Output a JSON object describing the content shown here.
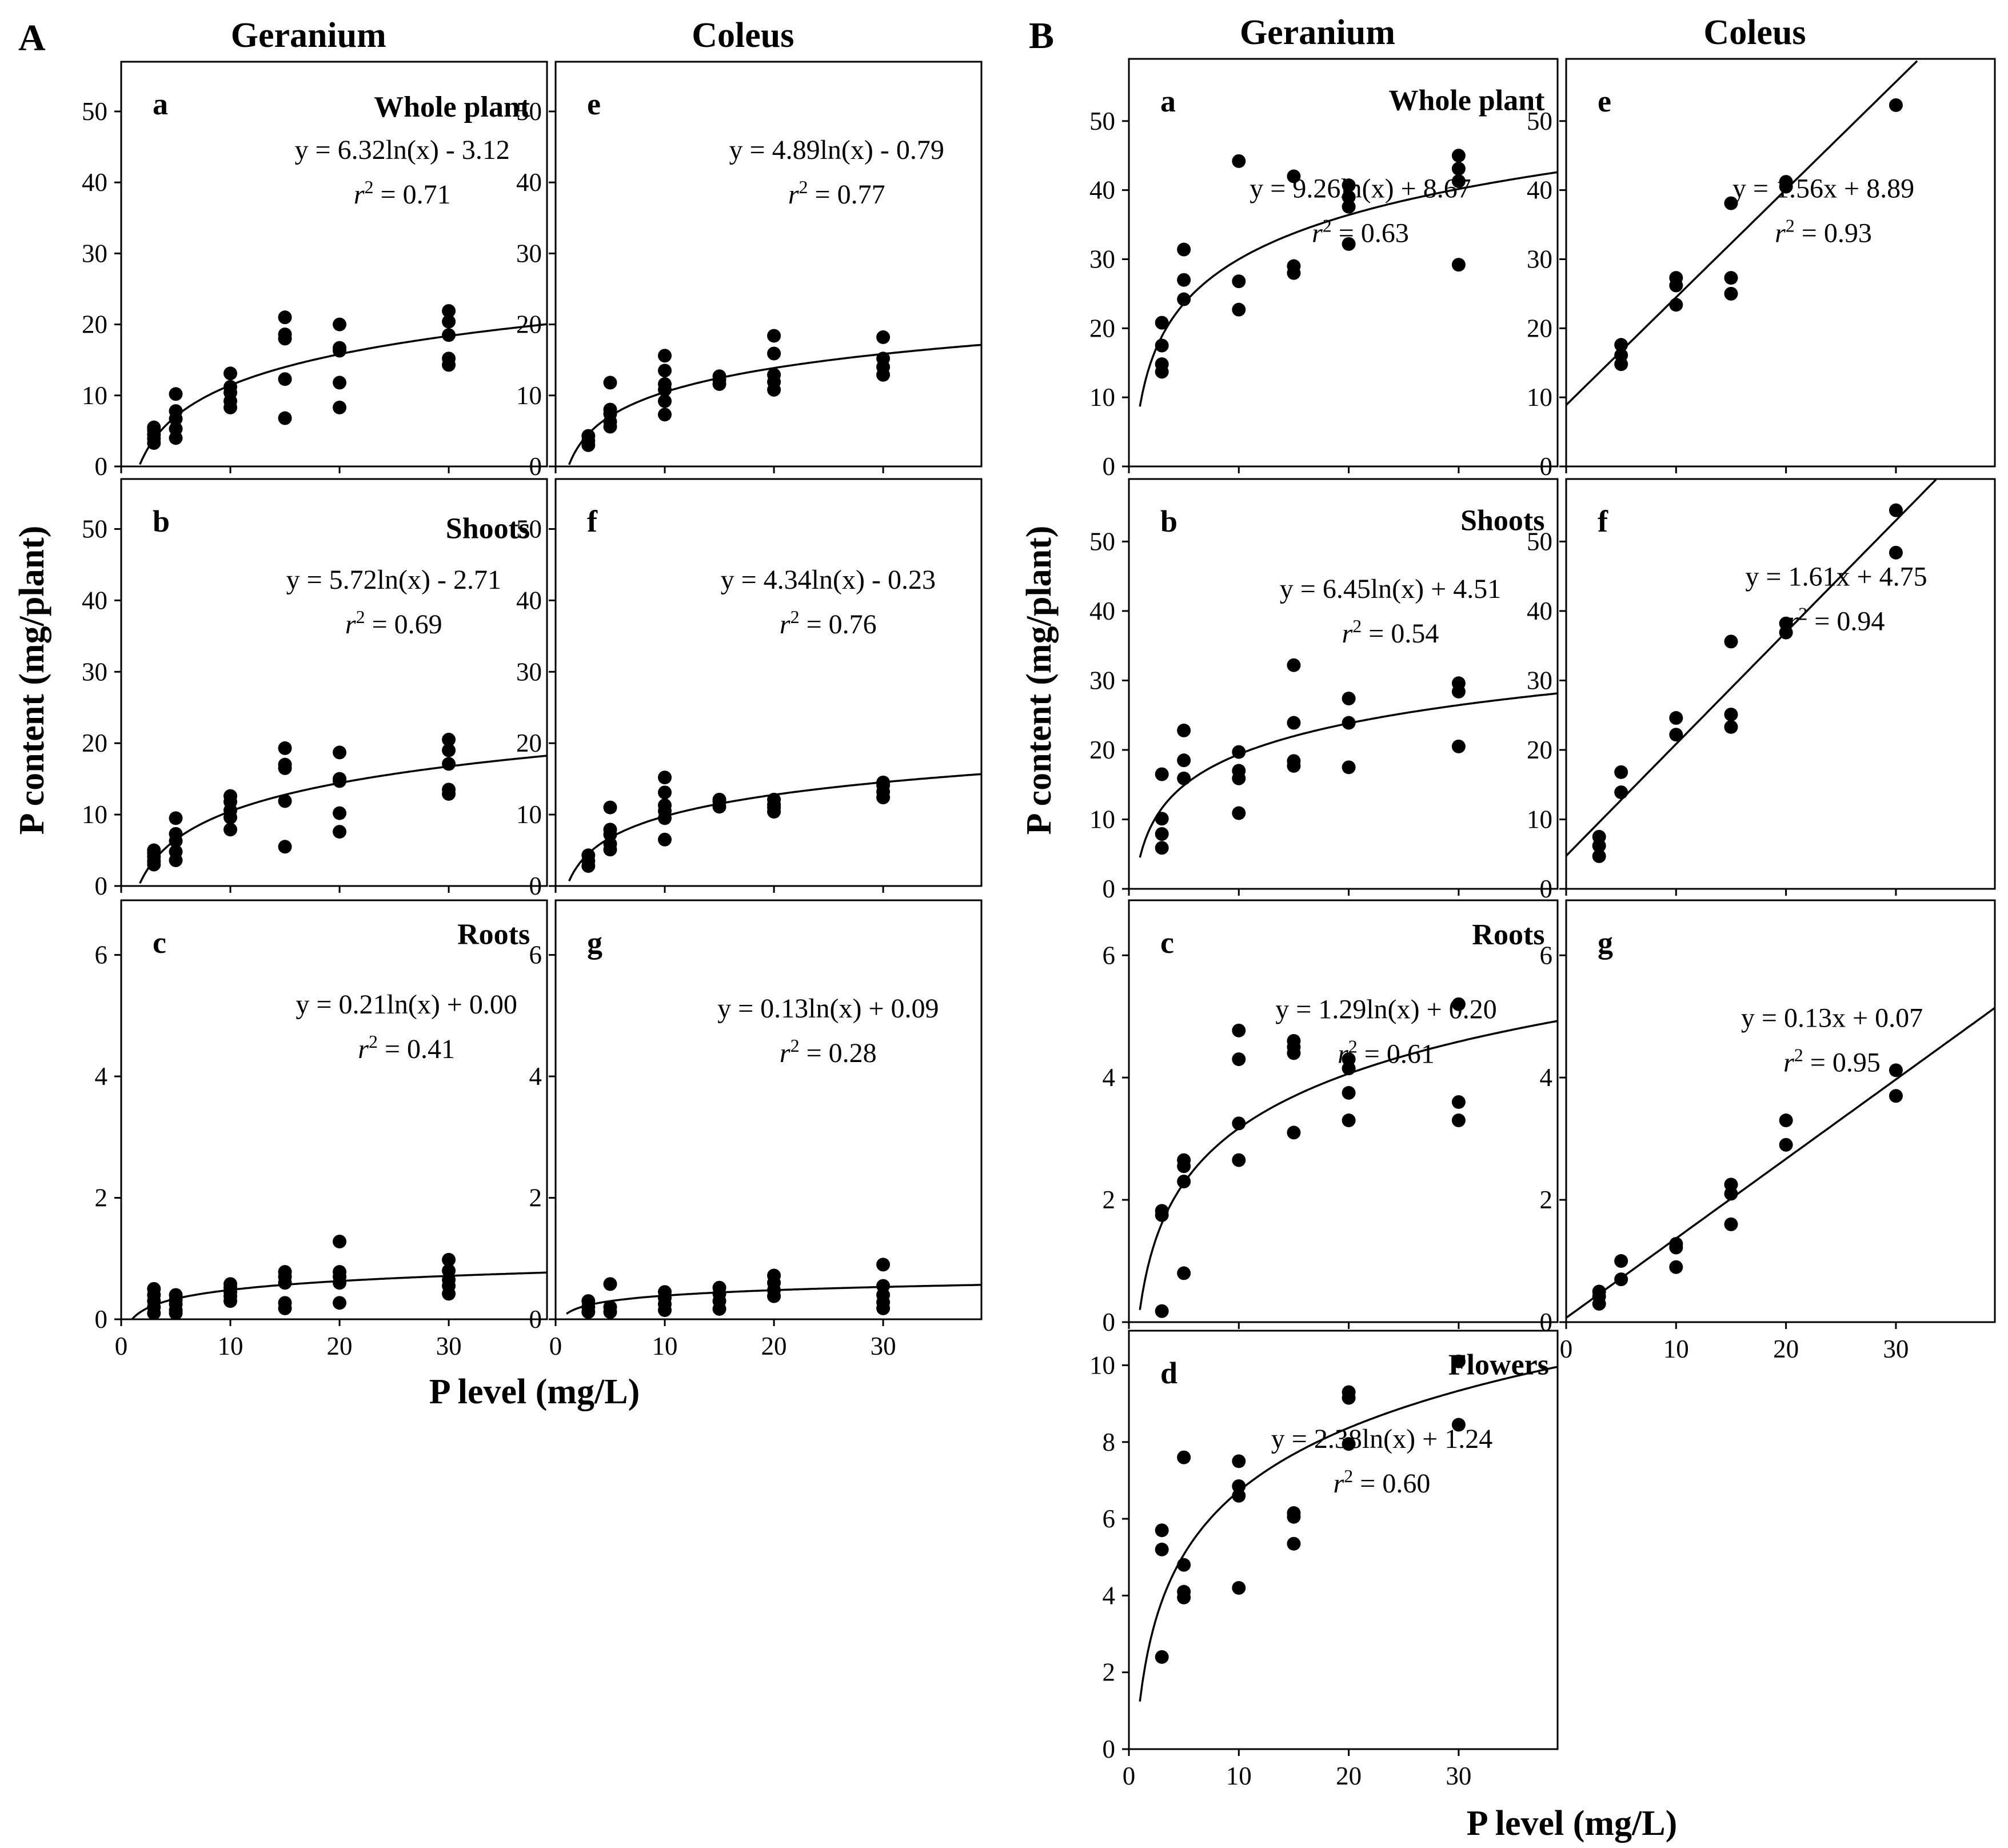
{
  "figure": {
    "section_a_label": "A",
    "section_b_label": "B",
    "xlabel": "P level (mg/L)",
    "ylabel": "P content (mg/plant)",
    "r2_prefix": "r",
    "r2_sup": "2"
  },
  "chart_data": [
    {
      "id": "A-a",
      "type": "scatter",
      "section": "A",
      "column_title": "Geranium",
      "panel_label": "a",
      "organ": "Whole plant",
      "fit": "log",
      "fit_a": 6.32,
      "fit_b": -3.12,
      "equation": "y = 6.32ln(x) - 3.12",
      "r2_value": "= 0.71",
      "xlim": [
        0,
        39
      ],
      "ylim": [
        0,
        57
      ],
      "xticks": [
        0,
        10,
        20,
        30
      ],
      "yticks": [
        0,
        10,
        20,
        30,
        40,
        50
      ],
      "show_x_ticks": false,
      "x": [
        3,
        3,
        3,
        3,
        3,
        5,
        5,
        5,
        5,
        5,
        10,
        10,
        10,
        10,
        10,
        15,
        15,
        15,
        15,
        15,
        20,
        20,
        20,
        20,
        20,
        30,
        30,
        30,
        30,
        30
      ],
      "y": [
        3.3,
        3.9,
        4.5,
        5.1,
        5.5,
        4.0,
        5.3,
        6.7,
        7.8,
        10.2,
        8.3,
        9.2,
        10.4,
        11.2,
        13.1,
        6.8,
        12.3,
        18.0,
        18.6,
        21.0,
        8.3,
        11.8,
        16.3,
        16.7,
        20.0,
        14.3,
        15.2,
        18.5,
        20.4,
        21.9
      ]
    },
    {
      "id": "A-e",
      "type": "scatter",
      "section": "A",
      "column_title": "Coleus",
      "panel_label": "e",
      "organ": "",
      "fit": "log",
      "fit_a": 4.89,
      "fit_b": -0.79,
      "equation": "y = 4.89ln(x) - 0.79",
      "r2_value": "= 0.77",
      "xlim": [
        0,
        39
      ],
      "ylim": [
        0,
        57
      ],
      "xticks": [
        0,
        10,
        20,
        30
      ],
      "yticks": [
        0,
        10,
        20,
        30,
        40,
        50
      ],
      "show_x_ticks": false,
      "x": [
        3,
        3,
        3,
        5,
        5,
        5,
        5,
        5,
        10,
        10,
        10,
        10,
        10,
        10,
        15,
        15,
        15,
        20,
        20,
        20,
        20,
        20,
        30,
        30,
        30,
        30
      ],
      "y": [
        3.0,
        3.6,
        4.3,
        5.6,
        6.3,
        7.4,
        8.0,
        11.8,
        7.3,
        9.2,
        10.8,
        11.6,
        13.5,
        15.6,
        11.6,
        12.2,
        12.7,
        10.8,
        11.9,
        12.9,
        15.9,
        18.4,
        12.9,
        14.0,
        15.2,
        18.2
      ]
    },
    {
      "id": "A-b",
      "type": "scatter",
      "section": "A",
      "column_title": "",
      "panel_label": "b",
      "organ": "Shoots",
      "fit": "log",
      "fit_a": 5.72,
      "fit_b": -2.71,
      "equation": "y = 5.72ln(x) - 2.71",
      "r2_value": "= 0.69",
      "xlim": [
        0,
        39
      ],
      "ylim": [
        0,
        57
      ],
      "xticks": [
        0,
        10,
        20,
        30
      ],
      "yticks": [
        0,
        10,
        20,
        30,
        40,
        50
      ],
      "show_x_ticks": false,
      "x": [
        3,
        3,
        3,
        3,
        3,
        5,
        5,
        5,
        5,
        5,
        10,
        10,
        10,
        10,
        10,
        15,
        15,
        15,
        15,
        15,
        20,
        20,
        20,
        20,
        20,
        30,
        30,
        30,
        30,
        30
      ],
      "y": [
        3.0,
        3.5,
        4.1,
        4.6,
        5.0,
        3.6,
        4.8,
        6.3,
        7.3,
        9.5,
        7.9,
        9.6,
        10.6,
        11.8,
        12.6,
        5.5,
        11.9,
        16.5,
        17.0,
        19.3,
        7.6,
        10.2,
        14.7,
        15.0,
        18.7,
        12.9,
        13.5,
        17.1,
        19.0,
        20.5
      ]
    },
    {
      "id": "A-f",
      "type": "scatter",
      "section": "A",
      "column_title": "",
      "panel_label": "f",
      "organ": "",
      "fit": "log",
      "fit_a": 4.34,
      "fit_b": -0.23,
      "equation": "y = 4.34ln(x) - 0.23",
      "r2_value": "= 0.76",
      "xlim": [
        0,
        39
      ],
      "ylim": [
        0,
        57
      ],
      "xticks": [
        0,
        10,
        20,
        30
      ],
      "yticks": [
        0,
        10,
        20,
        30,
        40,
        50
      ],
      "show_x_ticks": false,
      "x": [
        3,
        3,
        3,
        5,
        5,
        5,
        5,
        5,
        10,
        10,
        10,
        10,
        10,
        10,
        15,
        15,
        15,
        20,
        20,
        20,
        20,
        30,
        30,
        30,
        30
      ],
      "y": [
        2.8,
        3.5,
        4.3,
        5.1,
        5.9,
        7.2,
        7.9,
        11.0,
        6.5,
        9.5,
        10.5,
        11.3,
        13.1,
        15.2,
        11.1,
        11.8,
        12.1,
        10.4,
        11.0,
        11.4,
        12.1,
        12.4,
        13.2,
        14.1,
        14.5
      ]
    },
    {
      "id": "A-c",
      "type": "scatter",
      "section": "A",
      "column_title": "",
      "panel_label": "c",
      "organ": "Roots",
      "fit": "log",
      "fit_a": 0.21,
      "fit_b": 0.0,
      "equation": "y = 0.21ln(x) + 0.00",
      "r2_value": "= 0.41",
      "xlim": [
        0,
        39
      ],
      "ylim": [
        0,
        6.9
      ],
      "xticks": [
        0,
        10,
        20,
        30
      ],
      "yticks": [
        0,
        2,
        4,
        6
      ],
      "show_x_ticks": true,
      "x": [
        3,
        3,
        3,
        3,
        3,
        5,
        5,
        5,
        5,
        5,
        10,
        10,
        10,
        10,
        10,
        15,
        15,
        15,
        15,
        15,
        20,
        20,
        20,
        20,
        20,
        30,
        30,
        30,
        30,
        30
      ],
      "y": [
        0.1,
        0.2,
        0.3,
        0.4,
        0.5,
        0.1,
        0.15,
        0.25,
        0.32,
        0.4,
        0.3,
        0.38,
        0.45,
        0.52,
        0.58,
        0.18,
        0.27,
        0.6,
        0.7,
        0.78,
        0.27,
        0.6,
        0.7,
        0.78,
        1.28,
        0.42,
        0.55,
        0.65,
        0.8,
        0.98
      ]
    },
    {
      "id": "A-g",
      "type": "scatter",
      "section": "A",
      "column_title": "",
      "panel_label": "g",
      "organ": "",
      "fit": "log",
      "fit_a": 0.13,
      "fit_b": 0.09,
      "equation": "y = 0.13ln(x) + 0.09",
      "r2_value": "= 0.28",
      "xlim": [
        0,
        39
      ],
      "ylim": [
        0,
        6.9
      ],
      "xticks": [
        0,
        10,
        20,
        30
      ],
      "yticks": [
        0,
        2,
        4,
        6
      ],
      "show_x_ticks": true,
      "x": [
        3,
        3,
        3,
        5,
        5,
        5,
        10,
        10,
        10,
        10,
        15,
        15,
        15,
        15,
        20,
        20,
        20,
        20,
        30,
        30,
        30,
        30,
        30
      ],
      "y": [
        0.12,
        0.2,
        0.3,
        0.12,
        0.2,
        0.58,
        0.15,
        0.25,
        0.35,
        0.45,
        0.17,
        0.3,
        0.42,
        0.52,
        0.38,
        0.48,
        0.6,
        0.72,
        0.18,
        0.28,
        0.4,
        0.55,
        0.9
      ]
    },
    {
      "id": "B-a",
      "type": "scatter",
      "section": "B",
      "column_title": "Geranium",
      "panel_label": "a",
      "organ": "Whole plant",
      "fit": "log",
      "fit_a": 9.26,
      "fit_b": 8.67,
      "equation": "y = 9.26ln(x) + 8.67",
      "r2_value": "= 0.63",
      "xlim": [
        0,
        39
      ],
      "ylim": [
        0,
        59
      ],
      "xticks": [
        0,
        10,
        20,
        30
      ],
      "yticks": [
        0,
        10,
        20,
        30,
        40,
        50
      ],
      "show_x_ticks": false,
      "x": [
        3,
        3,
        3,
        3,
        5,
        5,
        5,
        10,
        10,
        10,
        15,
        15,
        15,
        20,
        20,
        20,
        20,
        30,
        30,
        30,
        30
      ],
      "y": [
        13.7,
        14.8,
        17.5,
        20.8,
        24.2,
        27.0,
        31.4,
        22.7,
        26.8,
        44.2,
        28.0,
        29.0,
        42.0,
        32.2,
        37.6,
        39.0,
        40.7,
        29.2,
        41.3,
        43.1,
        45.0
      ]
    },
    {
      "id": "B-e",
      "type": "scatter",
      "section": "B",
      "column_title": "Coleus",
      "panel_label": "e",
      "organ": "",
      "fit": "linear",
      "fit_a": 1.56,
      "fit_b": 8.89,
      "equation": "y = 1.56x + 8.89",
      "r2_value": "= 0.93",
      "xlim": [
        0,
        39
      ],
      "ylim": [
        0,
        59
      ],
      "xticks": [
        0,
        10,
        20,
        30
      ],
      "yticks": [
        0,
        10,
        20,
        30,
        40,
        50
      ],
      "show_x_ticks": false,
      "x": [
        5,
        5,
        5,
        10,
        10,
        10,
        15,
        15,
        15,
        20,
        20,
        30
      ],
      "y": [
        14.8,
        16.1,
        17.6,
        23.4,
        26.2,
        27.3,
        25.0,
        27.3,
        38.1,
        40.5,
        41.2,
        52.3
      ]
    },
    {
      "id": "B-b",
      "type": "scatter",
      "section": "B",
      "column_title": "",
      "panel_label": "b",
      "organ": "Shoots",
      "fit": "log",
      "fit_a": 6.45,
      "fit_b": 4.51,
      "equation": "y = 6.45ln(x) + 4.51",
      "r2_value": "= 0.54",
      "xlim": [
        0,
        39
      ],
      "ylim": [
        0,
        59
      ],
      "xticks": [
        0,
        10,
        20,
        30
      ],
      "yticks": [
        0,
        10,
        20,
        30,
        40,
        50
      ],
      "show_x_ticks": false,
      "x": [
        3,
        3,
        3,
        3,
        5,
        5,
        5,
        10,
        10,
        10,
        10,
        15,
        15,
        15,
        15,
        20,
        20,
        20,
        30,
        30,
        30
      ],
      "y": [
        5.9,
        7.9,
        10.1,
        16.5,
        15.9,
        18.5,
        22.8,
        10.9,
        15.9,
        17.0,
        19.7,
        17.7,
        18.4,
        23.9,
        32.2,
        17.5,
        23.9,
        27.4,
        20.5,
        28.4,
        29.6
      ]
    },
    {
      "id": "B-f",
      "type": "scatter",
      "section": "B",
      "column_title": "",
      "panel_label": "f",
      "organ": "",
      "fit": "linear",
      "fit_a": 1.61,
      "fit_b": 4.75,
      "equation": "y = 1.61x + 4.75",
      "r2_value": "= 0.94",
      "xlim": [
        0,
        39
      ],
      "ylim": [
        0,
        59
      ],
      "xticks": [
        0,
        10,
        20,
        30
      ],
      "yticks": [
        0,
        10,
        20,
        30,
        40,
        50
      ],
      "show_x_ticks": false,
      "x": [
        3,
        3,
        3,
        5,
        5,
        10,
        10,
        15,
        15,
        15,
        20,
        20,
        30,
        30
      ],
      "y": [
        4.7,
        6.2,
        7.5,
        13.9,
        16.8,
        22.2,
        24.6,
        23.3,
        25.1,
        35.6,
        36.9,
        38.2,
        48.4,
        54.5
      ]
    },
    {
      "id": "B-c",
      "type": "scatter",
      "section": "B",
      "column_title": "",
      "panel_label": "c",
      "organ": "Roots",
      "fit": "log",
      "fit_a": 1.29,
      "fit_b": 0.2,
      "equation": "y = 1.29ln(x) + 0.20",
      "r2_value": "= 0.61",
      "xlim": [
        0,
        39
      ],
      "ylim": [
        0,
        6.9
      ],
      "xticks": [
        0,
        10,
        20,
        30
      ],
      "yticks": [
        0,
        2,
        4,
        6
      ],
      "show_x_ticks": false,
      "x": [
        3,
        3,
        3,
        5,
        5,
        5,
        5,
        10,
        10,
        10,
        10,
        15,
        15,
        15,
        15,
        20,
        20,
        20,
        20,
        30,
        30,
        30
      ],
      "y": [
        0.18,
        1.75,
        1.82,
        0.8,
        2.3,
        2.55,
        2.65,
        2.65,
        3.25,
        4.3,
        4.77,
        3.1,
        4.4,
        4.5,
        4.6,
        3.3,
        3.75,
        4.15,
        4.3,
        3.3,
        3.6,
        5.2
      ]
    },
    {
      "id": "B-g",
      "type": "scatter",
      "section": "B",
      "column_title": "",
      "panel_label": "g",
      "organ": "",
      "fit": "linear",
      "fit_a": 0.13,
      "fit_b": 0.07,
      "equation": "y = 0.13x + 0.07",
      "r2_value": "= 0.95",
      "xlim": [
        0,
        39
      ],
      "ylim": [
        0,
        6.9
      ],
      "xticks": [
        0,
        10,
        20,
        30
      ],
      "yticks": [
        0,
        2,
        4,
        6
      ],
      "show_x_ticks": true,
      "x": [
        3,
        3,
        3,
        5,
        5,
        10,
        10,
        10,
        15,
        15,
        15,
        20,
        20,
        30,
        30
      ],
      "y": [
        0.3,
        0.42,
        0.5,
        0.7,
        1.0,
        0.9,
        1.22,
        1.28,
        1.6,
        2.1,
        2.25,
        2.9,
        3.3,
        3.7,
        4.12
      ]
    },
    {
      "id": "B-d",
      "type": "scatter",
      "section": "B",
      "column_title": "",
      "panel_label": "d",
      "organ": "Flowers",
      "fit": "log",
      "fit_a": 2.38,
      "fit_b": 1.24,
      "equation": "y = 2.38ln(x) + 1.24",
      "r2_value": "= 0.60",
      "xlim": [
        0,
        39
      ],
      "ylim": [
        0,
        10.9
      ],
      "xticks": [
        0,
        10,
        20,
        30
      ],
      "yticks": [
        0,
        2,
        4,
        6,
        8,
        10
      ],
      "show_x_ticks": true,
      "x": [
        3,
        3,
        3,
        5,
        5,
        5,
        5,
        10,
        10,
        10,
        10,
        15,
        15,
        15,
        20,
        20,
        20,
        30,
        30
      ],
      "y": [
        2.4,
        5.2,
        5.7,
        3.95,
        4.1,
        4.8,
        7.6,
        4.2,
        6.6,
        6.85,
        7.5,
        5.35,
        6.05,
        6.15,
        7.95,
        9.15,
        9.3,
        8.45,
        10.1
      ]
    }
  ]
}
